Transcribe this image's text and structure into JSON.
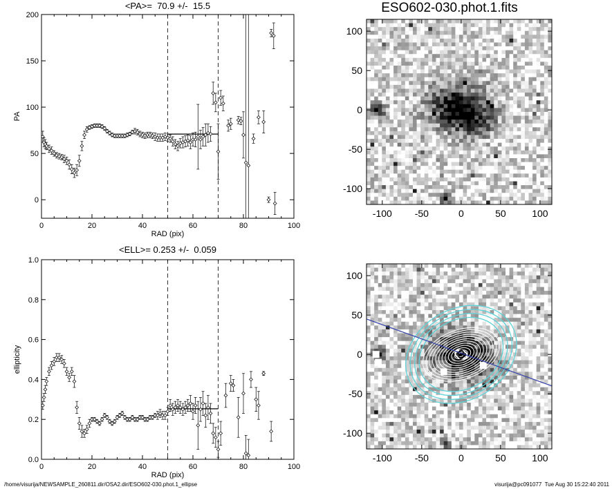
{
  "image_title": "ESO602-030.phot.1.fits",
  "footer": {
    "left": "/home/visurija/NEWSAMPLE_260811.dir/OSA2.dir/ESO602-030.phot.1_ellipse",
    "right": "visurija@pc091077  Tue Aug 30 15:22:40 2011"
  },
  "chart_data": [
    {
      "type": "scatter",
      "title": "<PA>=  70.9 +/-  15.5",
      "xlabel": "RAD (pix)",
      "ylabel": "PA",
      "xlim": [
        0,
        100
      ],
      "ylim": [
        -20,
        200
      ],
      "xticks": [
        0,
        20,
        40,
        60,
        80,
        100
      ],
      "yticks": [
        0,
        50,
        100,
        150,
        200
      ],
      "vlines_dashed": [
        50,
        70
      ],
      "mean_line": {
        "x": [
          50,
          70
        ],
        "y": 70.9
      },
      "marker": "diamond",
      "points": [
        {
          "x": 0.5,
          "y": 68,
          "e": 6
        },
        {
          "x": 1,
          "y": 62,
          "e": 5
        },
        {
          "x": 1.5,
          "y": 60,
          "e": 5
        },
        {
          "x": 2,
          "y": 58,
          "e": 4
        },
        {
          "x": 3,
          "y": 55,
          "e": 4
        },
        {
          "x": 4,
          "y": 53,
          "e": 4
        },
        {
          "x": 5,
          "y": 50,
          "e": 3
        },
        {
          "x": 6,
          "y": 48,
          "e": 3
        },
        {
          "x": 7,
          "y": 47,
          "e": 3
        },
        {
          "x": 8,
          "y": 46,
          "e": 3
        },
        {
          "x": 9,
          "y": 44,
          "e": 4
        },
        {
          "x": 10,
          "y": 42,
          "e": 4
        },
        {
          "x": 11,
          "y": 38,
          "e": 5
        },
        {
          "x": 12,
          "y": 33,
          "e": 5
        },
        {
          "x": 13,
          "y": 29,
          "e": 5
        },
        {
          "x": 14,
          "y": 32,
          "e": 6
        },
        {
          "x": 15,
          "y": 42,
          "e": 6
        },
        {
          "x": 16,
          "y": 58,
          "e": 5
        },
        {
          "x": 17,
          "y": 70,
          "e": 4
        },
        {
          "x": 18,
          "y": 76,
          "e": 3
        },
        {
          "x": 19,
          "y": 78,
          "e": 2
        },
        {
          "x": 20,
          "y": 79,
          "e": 2
        },
        {
          "x": 21,
          "y": 80,
          "e": 2
        },
        {
          "x": 22,
          "y": 80,
          "e": 2
        },
        {
          "x": 23,
          "y": 80,
          "e": 2
        },
        {
          "x": 24,
          "y": 79,
          "e": 2
        },
        {
          "x": 25,
          "y": 77,
          "e": 2
        },
        {
          "x": 26,
          "y": 74,
          "e": 2
        },
        {
          "x": 27,
          "y": 72,
          "e": 2
        },
        {
          "x": 28,
          "y": 70,
          "e": 2
        },
        {
          "x": 29,
          "y": 69,
          "e": 2
        },
        {
          "x": 30,
          "y": 69,
          "e": 2
        },
        {
          "x": 31,
          "y": 69,
          "e": 2
        },
        {
          "x": 32,
          "y": 69,
          "e": 2
        },
        {
          "x": 33,
          "y": 69,
          "e": 2
        },
        {
          "x": 34,
          "y": 70,
          "e": 2
        },
        {
          "x": 35,
          "y": 71,
          "e": 2
        },
        {
          "x": 36,
          "y": 73,
          "e": 2
        },
        {
          "x": 37,
          "y": 74,
          "e": 3
        },
        {
          "x": 38,
          "y": 73,
          "e": 3
        },
        {
          "x": 39,
          "y": 71,
          "e": 3
        },
        {
          "x": 40,
          "y": 70,
          "e": 3
        },
        {
          "x": 41,
          "y": 69,
          "e": 3
        },
        {
          "x": 42,
          "y": 70,
          "e": 3
        },
        {
          "x": 43,
          "y": 70,
          "e": 3
        },
        {
          "x": 44,
          "y": 69,
          "e": 3
        },
        {
          "x": 45,
          "y": 68,
          "e": 4
        },
        {
          "x": 46,
          "y": 67,
          "e": 4
        },
        {
          "x": 47,
          "y": 67,
          "e": 4
        },
        {
          "x": 48,
          "y": 67,
          "e": 4
        },
        {
          "x": 49,
          "y": 68,
          "e": 4
        },
        {
          "x": 50,
          "y": 67,
          "e": 4
        },
        {
          "x": 51,
          "y": 66,
          "e": 4
        },
        {
          "x": 52,
          "y": 63,
          "e": 5
        },
        {
          "x": 53,
          "y": 60,
          "e": 5
        },
        {
          "x": 54,
          "y": 58,
          "e": 5
        },
        {
          "x": 55,
          "y": 61,
          "e": 5
        },
        {
          "x": 56,
          "y": 62,
          "e": 6
        },
        {
          "x": 57,
          "y": 63,
          "e": 6
        },
        {
          "x": 58,
          "y": 64,
          "e": 6
        },
        {
          "x": 59,
          "y": 62,
          "e": 7
        },
        {
          "x": 60,
          "y": 65,
          "e": 7
        },
        {
          "x": 61,
          "y": 65,
          "e": 8
        },
        {
          "x": 62,
          "y": 68,
          "e": 35
        },
        {
          "x": 63,
          "y": 65,
          "e": 10
        },
        {
          "x": 64,
          "y": 68,
          "e": 10
        },
        {
          "x": 65,
          "y": 70,
          "e": 12
        },
        {
          "x": 66,
          "y": 72,
          "e": 10
        },
        {
          "x": 67,
          "y": 71,
          "e": 8
        },
        {
          "x": 68,
          "y": 115,
          "e": 12
        },
        {
          "x": 69,
          "y": 105,
          "e": 10
        },
        {
          "x": 70,
          "y": 52,
          "e": 30
        },
        {
          "x": 71,
          "y": 110,
          "e": 8
        },
        {
          "x": 72,
          "y": 104,
          "e": 8
        },
        {
          "x": 74,
          "y": 80,
          "e": 6
        },
        {
          "x": 75,
          "y": 82,
          "e": 6
        },
        {
          "x": 78,
          "y": 86,
          "e": 4
        },
        {
          "x": 79,
          "y": 85,
          "e": 4
        },
        {
          "x": 80,
          "y": 70,
          "e": 25
        },
        {
          "x": 81,
          "y": 40,
          "e": 200
        },
        {
          "x": 82,
          "y": 37,
          "e": 200
        },
        {
          "x": 84,
          "y": 66,
          "e": 5
        },
        {
          "x": 86,
          "y": 89,
          "e": 7
        },
        {
          "x": 88,
          "y": 84,
          "e": 12
        },
        {
          "x": 90,
          "y": 0,
          "e": 3
        },
        {
          "x": 91,
          "y": 180,
          "e": 4
        },
        {
          "x": 92,
          "y": 177,
          "e": 14
        },
        {
          "x": 92.5,
          "y": -4,
          "e": 12
        }
      ]
    },
    {
      "type": "scatter",
      "title": "<ELL>= 0.253 +/-  0.059",
      "xlabel": "RAD (pix)",
      "ylabel": "ellipticity",
      "xlim": [
        0,
        100
      ],
      "ylim": [
        0,
        1
      ],
      "xticks": [
        0,
        20,
        40,
        60,
        80,
        100
      ],
      "yticks": [
        0.0,
        0.2,
        0.4,
        0.6,
        0.8,
        1.0
      ],
      "vlines_dashed": [
        50,
        70
      ],
      "mean_line": {
        "x": [
          50,
          70
        ],
        "y": 0.253
      },
      "marker": "diamond",
      "points": [
        {
          "x": 0.5,
          "y": 0.27,
          "e": 0.02
        },
        {
          "x": 1,
          "y": 0.31,
          "e": 0.02
        },
        {
          "x": 1.5,
          "y": 0.35,
          "e": 0.02
        },
        {
          "x": 2,
          "y": 0.39,
          "e": 0.02
        },
        {
          "x": 3,
          "y": 0.44,
          "e": 0.02
        },
        {
          "x": 4,
          "y": 0.47,
          "e": 0.02
        },
        {
          "x": 5,
          "y": 0.49,
          "e": 0.02
        },
        {
          "x": 6,
          "y": 0.51,
          "e": 0.02
        },
        {
          "x": 7,
          "y": 0.51,
          "e": 0.02
        },
        {
          "x": 8,
          "y": 0.5,
          "e": 0.02
        },
        {
          "x": 9,
          "y": 0.48,
          "e": 0.02
        },
        {
          "x": 10,
          "y": 0.44,
          "e": 0.02
        },
        {
          "x": 11,
          "y": 0.41,
          "e": 0.02
        },
        {
          "x": 12,
          "y": 0.44,
          "e": 0.02
        },
        {
          "x": 13,
          "y": 0.39,
          "e": 0.03
        },
        {
          "x": 14,
          "y": 0.26,
          "e": 0.03
        },
        {
          "x": 15,
          "y": 0.18,
          "e": 0.03
        },
        {
          "x": 16,
          "y": 0.14,
          "e": 0.03
        },
        {
          "x": 17,
          "y": 0.13,
          "e": 0.02
        },
        {
          "x": 18,
          "y": 0.15,
          "e": 0.02
        },
        {
          "x": 19,
          "y": 0.18,
          "e": 0.02
        },
        {
          "x": 20,
          "y": 0.2,
          "e": 0.01
        },
        {
          "x": 21,
          "y": 0.2,
          "e": 0.01
        },
        {
          "x": 22,
          "y": 0.19,
          "e": 0.01
        },
        {
          "x": 23,
          "y": 0.18,
          "e": 0.01
        },
        {
          "x": 24,
          "y": 0.2,
          "e": 0.01
        },
        {
          "x": 25,
          "y": 0.22,
          "e": 0.01
        },
        {
          "x": 26,
          "y": 0.21,
          "e": 0.01
        },
        {
          "x": 27,
          "y": 0.19,
          "e": 0.01
        },
        {
          "x": 28,
          "y": 0.18,
          "e": 0.01
        },
        {
          "x": 29,
          "y": 0.19,
          "e": 0.01
        },
        {
          "x": 30,
          "y": 0.21,
          "e": 0.01
        },
        {
          "x": 31,
          "y": 0.22,
          "e": 0.01
        },
        {
          "x": 32,
          "y": 0.23,
          "e": 0.01
        },
        {
          "x": 33,
          "y": 0.21,
          "e": 0.01
        },
        {
          "x": 34,
          "y": 0.2,
          "e": 0.01
        },
        {
          "x": 35,
          "y": 0.2,
          "e": 0.01
        },
        {
          "x": 36,
          "y": 0.21,
          "e": 0.01
        },
        {
          "x": 37,
          "y": 0.2,
          "e": 0.01
        },
        {
          "x": 38,
          "y": 0.2,
          "e": 0.01
        },
        {
          "x": 39,
          "y": 0.21,
          "e": 0.01
        },
        {
          "x": 40,
          "y": 0.21,
          "e": 0.01
        },
        {
          "x": 41,
          "y": 0.2,
          "e": 0.01
        },
        {
          "x": 42,
          "y": 0.2,
          "e": 0.01
        },
        {
          "x": 43,
          "y": 0.21,
          "e": 0.01
        },
        {
          "x": 44,
          "y": 0.21,
          "e": 0.01
        },
        {
          "x": 45,
          "y": 0.22,
          "e": 0.01
        },
        {
          "x": 46,
          "y": 0.22,
          "e": 0.02
        },
        {
          "x": 47,
          "y": 0.23,
          "e": 0.02
        },
        {
          "x": 48,
          "y": 0.22,
          "e": 0.02
        },
        {
          "x": 49,
          "y": 0.22,
          "e": 0.02
        },
        {
          "x": 50,
          "y": 0.24,
          "e": 0.02
        },
        {
          "x": 51,
          "y": 0.27,
          "e": 0.03
        },
        {
          "x": 52,
          "y": 0.25,
          "e": 0.03
        },
        {
          "x": 53,
          "y": 0.26,
          "e": 0.03
        },
        {
          "x": 54,
          "y": 0.27,
          "e": 0.03
        },
        {
          "x": 55,
          "y": 0.26,
          "e": 0.03
        },
        {
          "x": 56,
          "y": 0.25,
          "e": 0.03
        },
        {
          "x": 57,
          "y": 0.26,
          "e": 0.03
        },
        {
          "x": 58,
          "y": 0.27,
          "e": 0.03
        },
        {
          "x": 59,
          "y": 0.28,
          "e": 0.04
        },
        {
          "x": 60,
          "y": 0.24,
          "e": 0.04
        },
        {
          "x": 61,
          "y": 0.27,
          "e": 0.04
        },
        {
          "x": 62,
          "y": 0.17,
          "e": 0.12
        },
        {
          "x": 63,
          "y": 0.25,
          "e": 0.06
        },
        {
          "x": 64,
          "y": 0.28,
          "e": 0.06
        },
        {
          "x": 65,
          "y": 0.22,
          "e": 0.06
        },
        {
          "x": 66,
          "y": 0.26,
          "e": 0.06
        },
        {
          "x": 67,
          "y": 0.23,
          "e": 0.05
        },
        {
          "x": 68,
          "y": 0.13,
          "e": 0.05
        },
        {
          "x": 69,
          "y": 0.11,
          "e": 0.05
        },
        {
          "x": 70,
          "y": 0.05,
          "e": 0.04
        },
        {
          "x": 71,
          "y": 0.13,
          "e": 0.06
        },
        {
          "x": 73,
          "y": 0.32,
          "e": 0.06
        },
        {
          "x": 75,
          "y": 0.38,
          "e": 0.04
        },
        {
          "x": 76,
          "y": 0.37,
          "e": 0.03
        },
        {
          "x": 78,
          "y": 0.21,
          "e": 0.1
        },
        {
          "x": 80,
          "y": 0.33,
          "e": 0.1
        },
        {
          "x": 81,
          "y": 0.03,
          "e": 0.09
        },
        {
          "x": 82,
          "y": 0.02,
          "e": 0.08
        },
        {
          "x": 83,
          "y": 0.4,
          "e": 0.04
        },
        {
          "x": 85,
          "y": 0.3,
          "e": 0.06
        },
        {
          "x": 86,
          "y": 0.27,
          "e": 0.07
        },
        {
          "x": 88,
          "y": 0.43,
          "e": 0.01
        },
        {
          "x": 91,
          "y": 0.14,
          "e": 0.05
        }
      ]
    },
    {
      "type": "heatmap",
      "title": "ESO602-030.phot.1.fits",
      "xlim": [
        -120,
        115
      ],
      "ylim": [
        -120,
        115
      ],
      "xticks": [
        -100,
        -50,
        0,
        50,
        100
      ],
      "yticks": [
        -100,
        -50,
        0,
        50,
        100
      ],
      "colormap": "inverted-greyscale"
    },
    {
      "type": "heatmap",
      "xlim": [
        -120,
        115
      ],
      "ylim": [
        -120,
        115
      ],
      "xticks": [
        -100,
        -50,
        0,
        50,
        100
      ],
      "yticks": [
        -100,
        -50,
        0,
        50,
        100
      ],
      "colormap": "inverted-greyscale",
      "overlay": "fitted isophote ellipses (white inner, cyan outer) and major-axis line (blue)",
      "overlay_colors": {
        "inner_ellipses": "#ffffff",
        "outer_ellipses": "#5fd3d9",
        "axis_line": "#3340a8"
      }
    }
  ]
}
